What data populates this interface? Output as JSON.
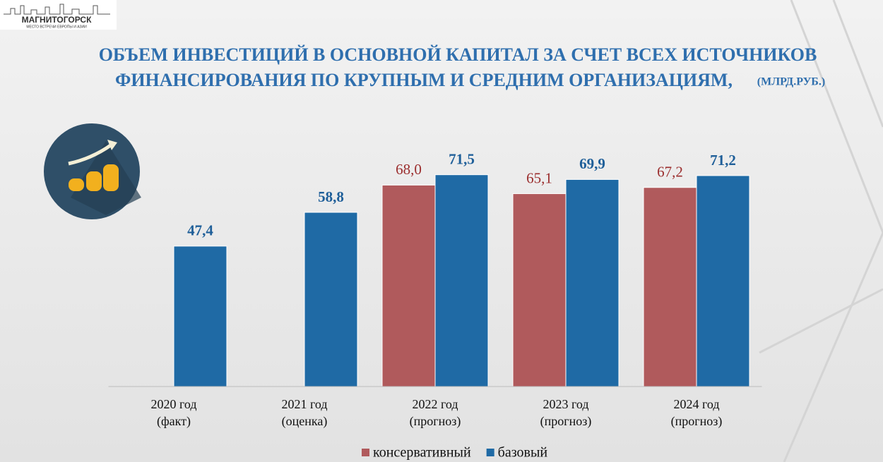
{
  "logo": {
    "name": "МАГНИТОГОРСК",
    "tagline": "МЕСТО ВСТРЕЧИ ЕВРОПЫ И АЗИИ"
  },
  "chart_data": {
    "type": "bar",
    "title": [
      "ОБЪЕМ ИНВЕСТИЦИЙ В ОСНОВНОЙ КАПИТАЛ ЗА СЧЕТ ВСЕХ ИСТОЧНИКОВ",
      "ФИНАНСИРОВАНИЯ ПО КРУПНЫМ И СРЕДНИМ ОРГАНИЗАЦИЯМ,"
    ],
    "units": "(МЛРД.РУБ.)",
    "categories": [
      [
        "2020 год",
        "(факт)"
      ],
      [
        "2021 год",
        "(оценка)"
      ],
      [
        "2022 год",
        "(прогноз)"
      ],
      [
        "2023 год",
        "(прогноз)"
      ],
      [
        "2024 год",
        "(прогноз)"
      ]
    ],
    "series": [
      {
        "name": "консервативный",
        "color": "#b05a5c",
        "values": [
          null,
          null,
          68.0,
          65.1,
          67.2
        ],
        "value_labels": [
          null,
          null,
          "68,0",
          "65,1",
          "67,2"
        ]
      },
      {
        "name": "базовый",
        "color": "#1f6aa5",
        "values": [
          47.4,
          58.8,
          71.5,
          69.9,
          71.2
        ],
        "value_labels": [
          "47,4",
          "58,8",
          "71,5",
          "69,9",
          "71,2"
        ]
      }
    ],
    "ylim": [
      0,
      80
    ],
    "legend": "bottom"
  }
}
